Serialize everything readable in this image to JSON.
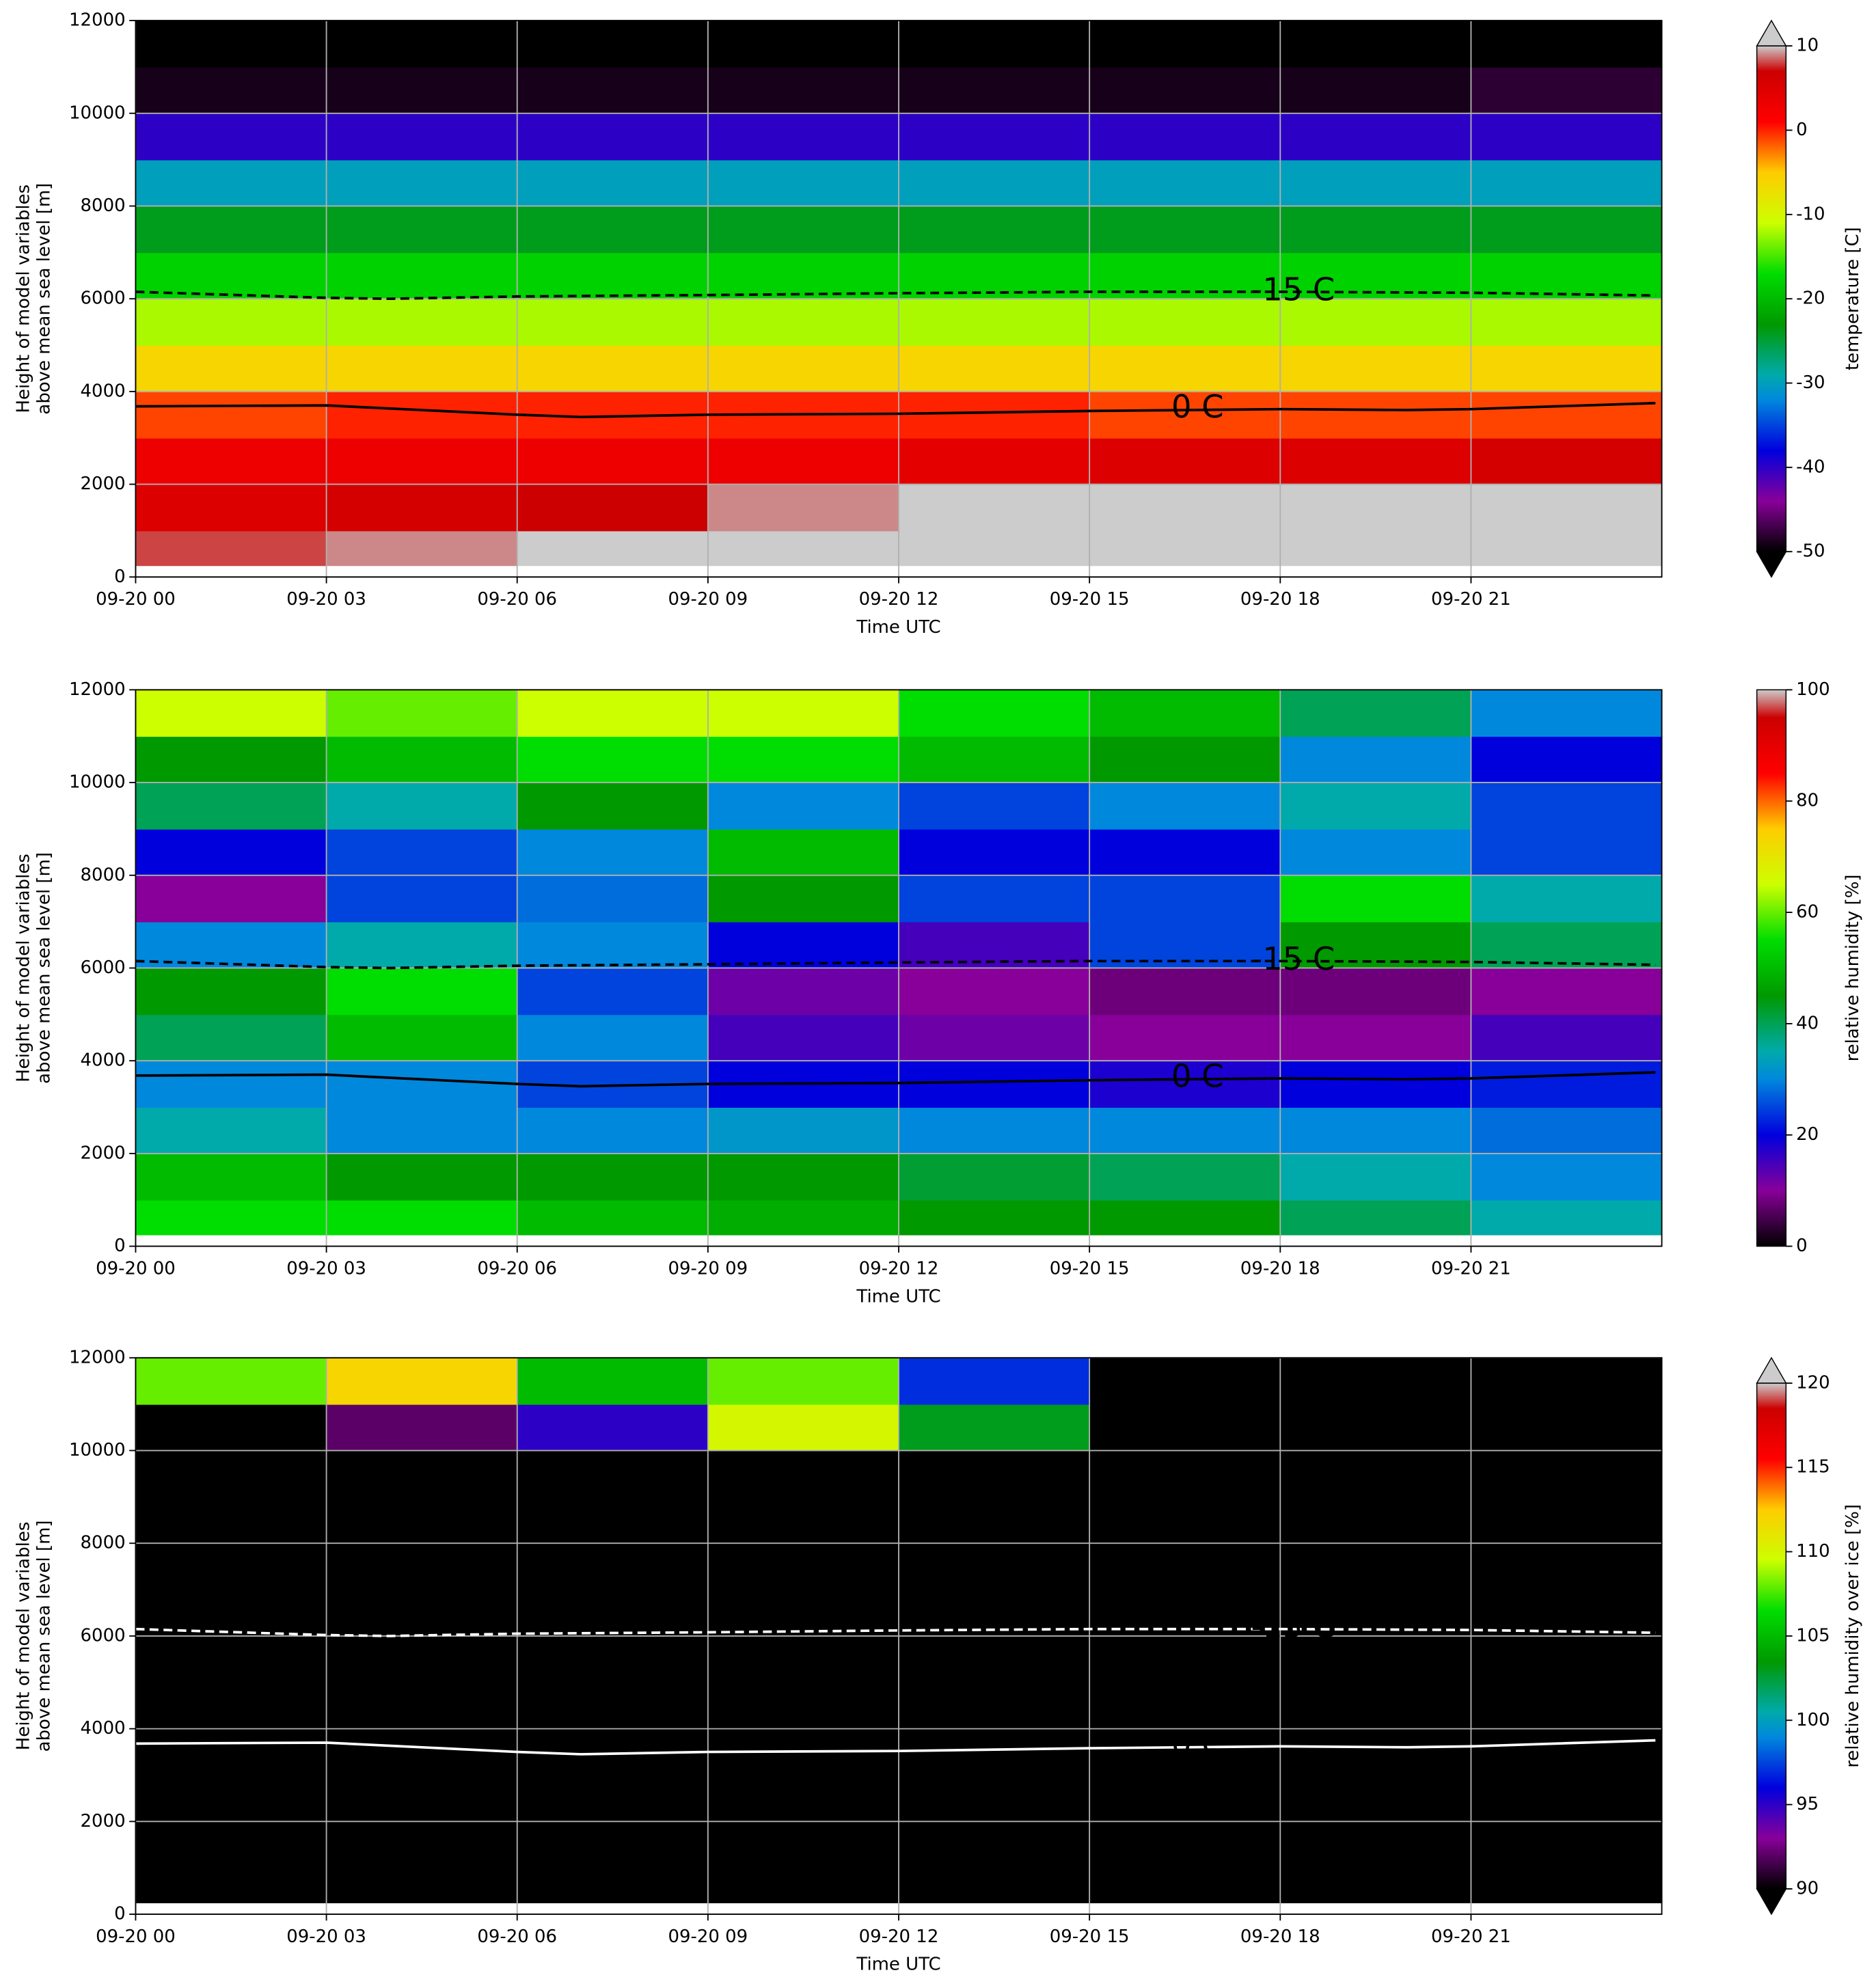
{
  "chart_data": [
    {
      "type": "heatmap",
      "xlabel": "Time UTC",
      "ylabel": [
        "Height of model variables",
        "above mean sea level [m]"
      ],
      "colorbar_label": "temperature [C]",
      "cmap": "nipy_spectral",
      "clim": [
        -50,
        10
      ],
      "cticks": [
        10,
        0,
        -10,
        -20,
        -30,
        -40,
        -50
      ],
      "extend": "both",
      "grid": true,
      "xlim": [
        0,
        24
      ],
      "ylim": [
        0,
        12000
      ],
      "xticks": [
        {
          "value": 0,
          "label": "09-20 00"
        },
        {
          "value": 3,
          "label": "09-20 03"
        },
        {
          "value": 6,
          "label": "09-20 06"
        },
        {
          "value": 9,
          "label": "09-20 09"
        },
        {
          "value": 12,
          "label": "09-20 12"
        },
        {
          "value": 15,
          "label": "09-20 15"
        },
        {
          "value": 18,
          "label": "09-20 18"
        },
        {
          "value": 21,
          "label": "09-20 21"
        }
      ],
      "yticks": [
        0,
        2000,
        4000,
        6000,
        8000,
        10000,
        12000
      ],
      "x_bins": [
        0,
        3,
        6,
        9,
        12,
        15,
        18,
        21,
        24
      ],
      "y_bins": [
        250,
        1000,
        2000,
        3000,
        4000,
        5000,
        6000,
        7000,
        8000,
        9000,
        10000,
        11000,
        12000
      ],
      "values": [
        [
          8,
          9,
          10.5,
          12,
          13,
          14,
          14,
          14
        ],
        [
          5,
          6,
          7,
          9,
          10.5,
          12,
          12,
          12
        ],
        [
          3,
          3,
          3,
          3,
          4,
          5,
          5,
          6
        ],
        [
          -1,
          0,
          0,
          0,
          0,
          -1,
          -1,
          -1
        ],
        [
          -6,
          -6,
          -6,
          -6,
          -6,
          -6,
          -6,
          -6
        ],
        [
          -12,
          -12,
          -12,
          -12,
          -12,
          -12,
          -12,
          -12
        ],
        [
          -18,
          -18,
          -18,
          -18,
          -18,
          -18,
          -18,
          -18
        ],
        [
          -24,
          -24,
          -24,
          -24,
          -24,
          -24,
          -24,
          -24
        ],
        [
          -30,
          -30,
          -30,
          -30,
          -30,
          -30,
          -30,
          -30
        ],
        [
          -40,
          -40,
          -40,
          -40,
          -40,
          -40,
          -40,
          -40
        ],
        [
          -49,
          -49,
          -49,
          -49,
          -49,
          -49,
          -49,
          -48
        ],
        [
          -55,
          -55,
          -55,
          -55,
          -55,
          -55,
          -55,
          -55
        ]
      ],
      "contours": [
        {
          "label": "0 C",
          "color": "#000000",
          "dashed": false,
          "x": [
            0,
            3,
            6,
            7,
            9,
            12,
            15,
            18,
            20,
            21,
            23.9
          ],
          "values": [
            3680,
            3700,
            3500,
            3450,
            3500,
            3520,
            3580,
            3620,
            3600,
            3620,
            3750
          ]
        },
        {
          "label": "-15 C",
          "color": "#000000",
          "dashed": true,
          "x": [
            0,
            3,
            4,
            6,
            9,
            12,
            15,
            18,
            21,
            23.9
          ],
          "values": [
            6150,
            6020,
            6000,
            6050,
            6080,
            6120,
            6150,
            6150,
            6130,
            6070
          ]
        }
      ]
    },
    {
      "type": "heatmap",
      "xlabel": "Time UTC",
      "ylabel": [
        "Height of model variables",
        "above mean sea level [m]"
      ],
      "colorbar_label": "relative humidity [%]",
      "cmap": "nipy_spectral",
      "clim": [
        0,
        100
      ],
      "cticks": [
        100,
        80,
        60,
        40,
        20,
        0
      ],
      "extend": "neither",
      "grid": true,
      "xlim": [
        0,
        24
      ],
      "ylim": [
        0,
        12000
      ],
      "xticks": [
        {
          "value": 0,
          "label": "09-20 00"
        },
        {
          "value": 3,
          "label": "09-20 03"
        },
        {
          "value": 6,
          "label": "09-20 06"
        },
        {
          "value": 9,
          "label": "09-20 09"
        },
        {
          "value": 12,
          "label": "09-20 12"
        },
        {
          "value": 15,
          "label": "09-20 15"
        },
        {
          "value": 18,
          "label": "09-20 18"
        },
        {
          "value": 21,
          "label": "09-20 21"
        }
      ],
      "yticks": [
        0,
        2000,
        4000,
        6000,
        8000,
        10000,
        12000
      ],
      "x_bins": [
        0,
        3,
        6,
        9,
        12,
        15,
        18,
        21,
        24
      ],
      "y_bins": [
        250,
        1000,
        2000,
        3000,
        4000,
        5000,
        6000,
        7000,
        8000,
        9000,
        10000,
        11000,
        12000
      ],
      "values": [
        [
          55,
          55,
          50,
          48,
          45,
          45,
          40,
          35
        ],
        [
          50,
          45,
          45,
          45,
          42,
          40,
          35,
          30
        ],
        [
          35,
          30,
          30,
          32,
          30,
          30,
          30,
          28
        ],
        [
          30,
          30,
          25,
          20,
          20,
          18,
          20,
          22
        ],
        [
          40,
          50,
          30,
          15,
          12,
          10,
          10,
          15
        ],
        [
          45,
          55,
          25,
          12,
          10,
          8,
          8,
          10
        ],
        [
          30,
          35,
          30,
          20,
          15,
          25,
          45,
          40
        ],
        [
          10,
          25,
          28,
          45,
          25,
          25,
          55,
          35
        ],
        [
          20,
          25,
          30,
          50,
          20,
          20,
          30,
          25
        ],
        [
          40,
          35,
          45,
          30,
          25,
          30,
          35,
          25
        ],
        [
          45,
          50,
          55,
          55,
          50,
          45,
          30,
          20
        ],
        [
          65,
          60,
          65,
          65,
          55,
          50,
          40,
          30
        ]
      ],
      "contours": [
        {
          "label": "0 C",
          "color": "#000000",
          "dashed": false,
          "x": [
            0,
            3,
            6,
            7,
            9,
            12,
            15,
            18,
            20,
            21,
            23.9
          ],
          "values": [
            3680,
            3700,
            3500,
            3450,
            3500,
            3520,
            3580,
            3620,
            3600,
            3620,
            3750
          ]
        },
        {
          "label": "-15 C",
          "color": "#000000",
          "dashed": true,
          "x": [
            0,
            3,
            4,
            6,
            9,
            12,
            15,
            18,
            21,
            23.9
          ],
          "values": [
            6150,
            6020,
            6000,
            6050,
            6080,
            6120,
            6150,
            6150,
            6130,
            6070
          ]
        }
      ]
    },
    {
      "type": "heatmap",
      "xlabel": "Time UTC",
      "ylabel": [
        "Height of model variables",
        "above mean sea level [m]"
      ],
      "colorbar_label": "relative humidity over ice [%]",
      "cmap": "nipy_spectral",
      "clim": [
        90,
        120
      ],
      "cticks": [
        120,
        115,
        110,
        105,
        100,
        95,
        90
      ],
      "extend": "both",
      "grid": true,
      "xlim": [
        0,
        24
      ],
      "ylim": [
        0,
        12000
      ],
      "xticks": [
        {
          "value": 0,
          "label": "09-20 00"
        },
        {
          "value": 3,
          "label": "09-20 03"
        },
        {
          "value": 6,
          "label": "09-20 06"
        },
        {
          "value": 9,
          "label": "09-20 09"
        },
        {
          "value": 12,
          "label": "09-20 12"
        },
        {
          "value": 15,
          "label": "09-20 15"
        },
        {
          "value": 18,
          "label": "09-20 18"
        },
        {
          "value": 21,
          "label": "09-20 21"
        }
      ],
      "yticks": [
        0,
        2000,
        4000,
        6000,
        8000,
        10000,
        12000
      ],
      "x_bins": [
        0,
        3,
        6,
        9,
        12,
        15,
        18,
        21,
        24
      ],
      "y_bins": [
        250,
        1000,
        2000,
        3000,
        4000,
        5000,
        6000,
        7000,
        8000,
        9000,
        10000,
        11000,
        12000
      ],
      "values": [
        [
          80,
          80,
          80,
          80,
          80,
          80,
          80,
          80
        ],
        [
          80,
          80,
          80,
          80,
          80,
          80,
          80,
          80
        ],
        [
          80,
          80,
          80,
          80,
          80,
          80,
          80,
          80
        ],
        [
          80,
          80,
          80,
          80,
          80,
          80,
          80,
          80
        ],
        [
          80,
          80,
          80,
          80,
          80,
          80,
          80,
          80
        ],
        [
          80,
          80,
          80,
          80,
          80,
          80,
          80,
          80
        ],
        [
          80,
          80,
          80,
          80,
          80,
          80,
          80,
          80
        ],
        [
          80,
          80,
          80,
          80,
          80,
          80,
          80,
          80
        ],
        [
          80,
          80,
          80,
          80,
          80,
          80,
          80,
          80
        ],
        [
          85,
          80,
          80,
          80,
          80,
          80,
          80,
          80
        ],
        [
          85,
          92,
          95,
          110,
          103,
          88,
          85,
          85
        ],
        [
          108,
          112,
          105,
          108,
          97,
          88,
          85,
          85
        ]
      ],
      "contours": [
        {
          "label": "0 C",
          "color": "#ffffff",
          "dashed": false,
          "x": [
            0,
            3,
            6,
            7,
            9,
            12,
            15,
            18,
            20,
            21,
            23.9
          ],
          "values": [
            3680,
            3700,
            3500,
            3450,
            3500,
            3520,
            3580,
            3620,
            3600,
            3620,
            3750
          ]
        },
        {
          "label": "-15 C",
          "color": "#ffffff",
          "dashed": true,
          "x": [
            0,
            3,
            4,
            6,
            9,
            12,
            15,
            18,
            21,
            23.9
          ],
          "values": [
            6150,
            6020,
            6000,
            6050,
            6080,
            6120,
            6150,
            6150,
            6130,
            6070
          ]
        }
      ]
    }
  ]
}
